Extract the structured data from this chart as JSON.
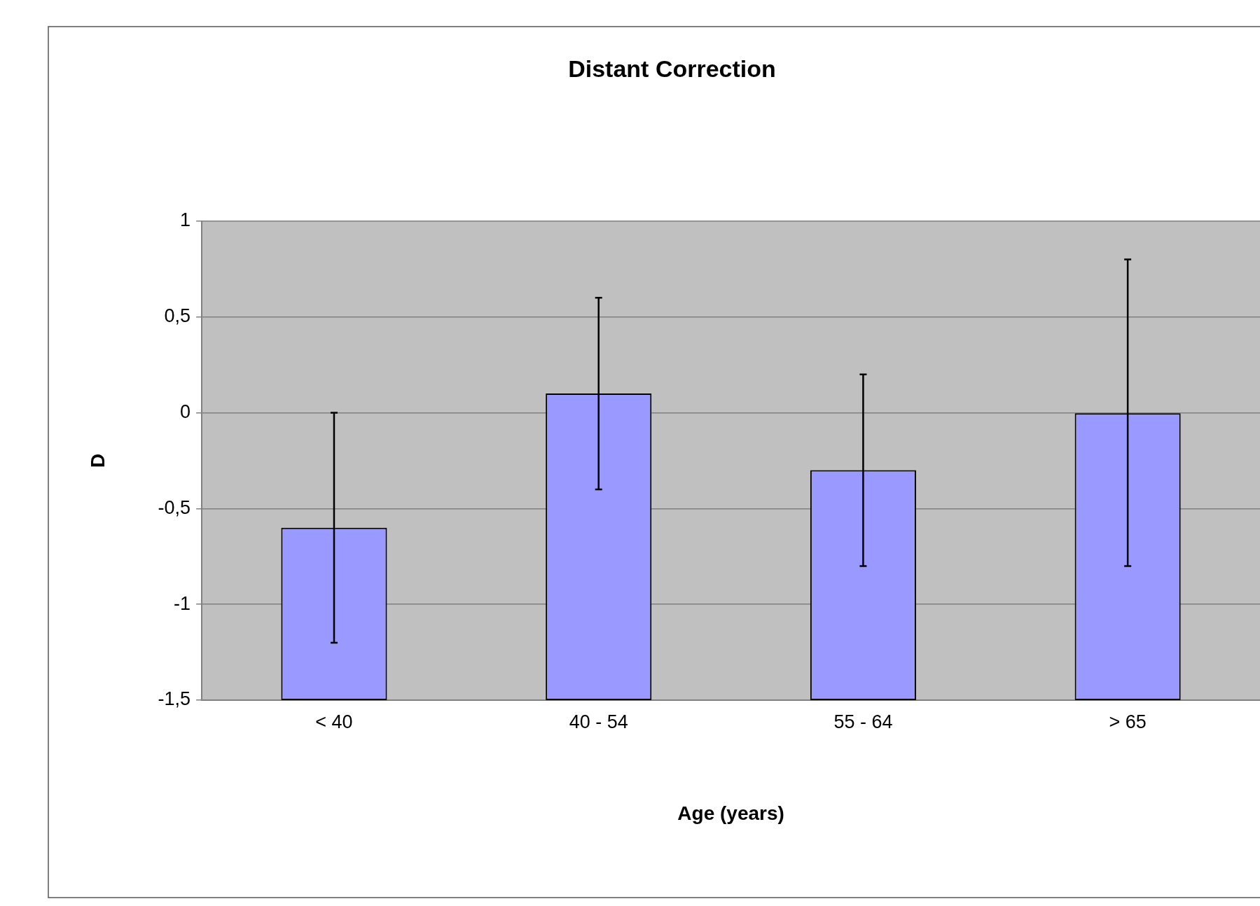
{
  "chart_data": {
    "type": "bar",
    "title": "Distant Correction",
    "xlabel": "Age (years)",
    "ylabel": "D",
    "categories": [
      "< 40",
      "40 - 54",
      "55 - 64",
      "> 65"
    ],
    "base": [
      -1.5,
      -1.5,
      -1.5,
      -1.5
    ],
    "values": [
      0.9,
      1.6,
      1.2,
      1.5
    ],
    "errors": [
      [
        -1.2,
        0
      ],
      [
        -0.4,
        0.6
      ],
      [
        -0.8,
        0.2
      ],
      [
        -0.8,
        0.8
      ]
    ],
    "color": "#9999ff",
    "ylim": [
      -1.5,
      1
    ],
    "yticks": [
      {
        "value": -1.5,
        "label": "-1,5"
      },
      -1,
      {
        "value": -0.5,
        "label": "-0,5"
      },
      0,
      {
        "value": 0.5,
        "label": "0,5"
      },
      1
    ],
    "grid": "y",
    "legend": false
  }
}
